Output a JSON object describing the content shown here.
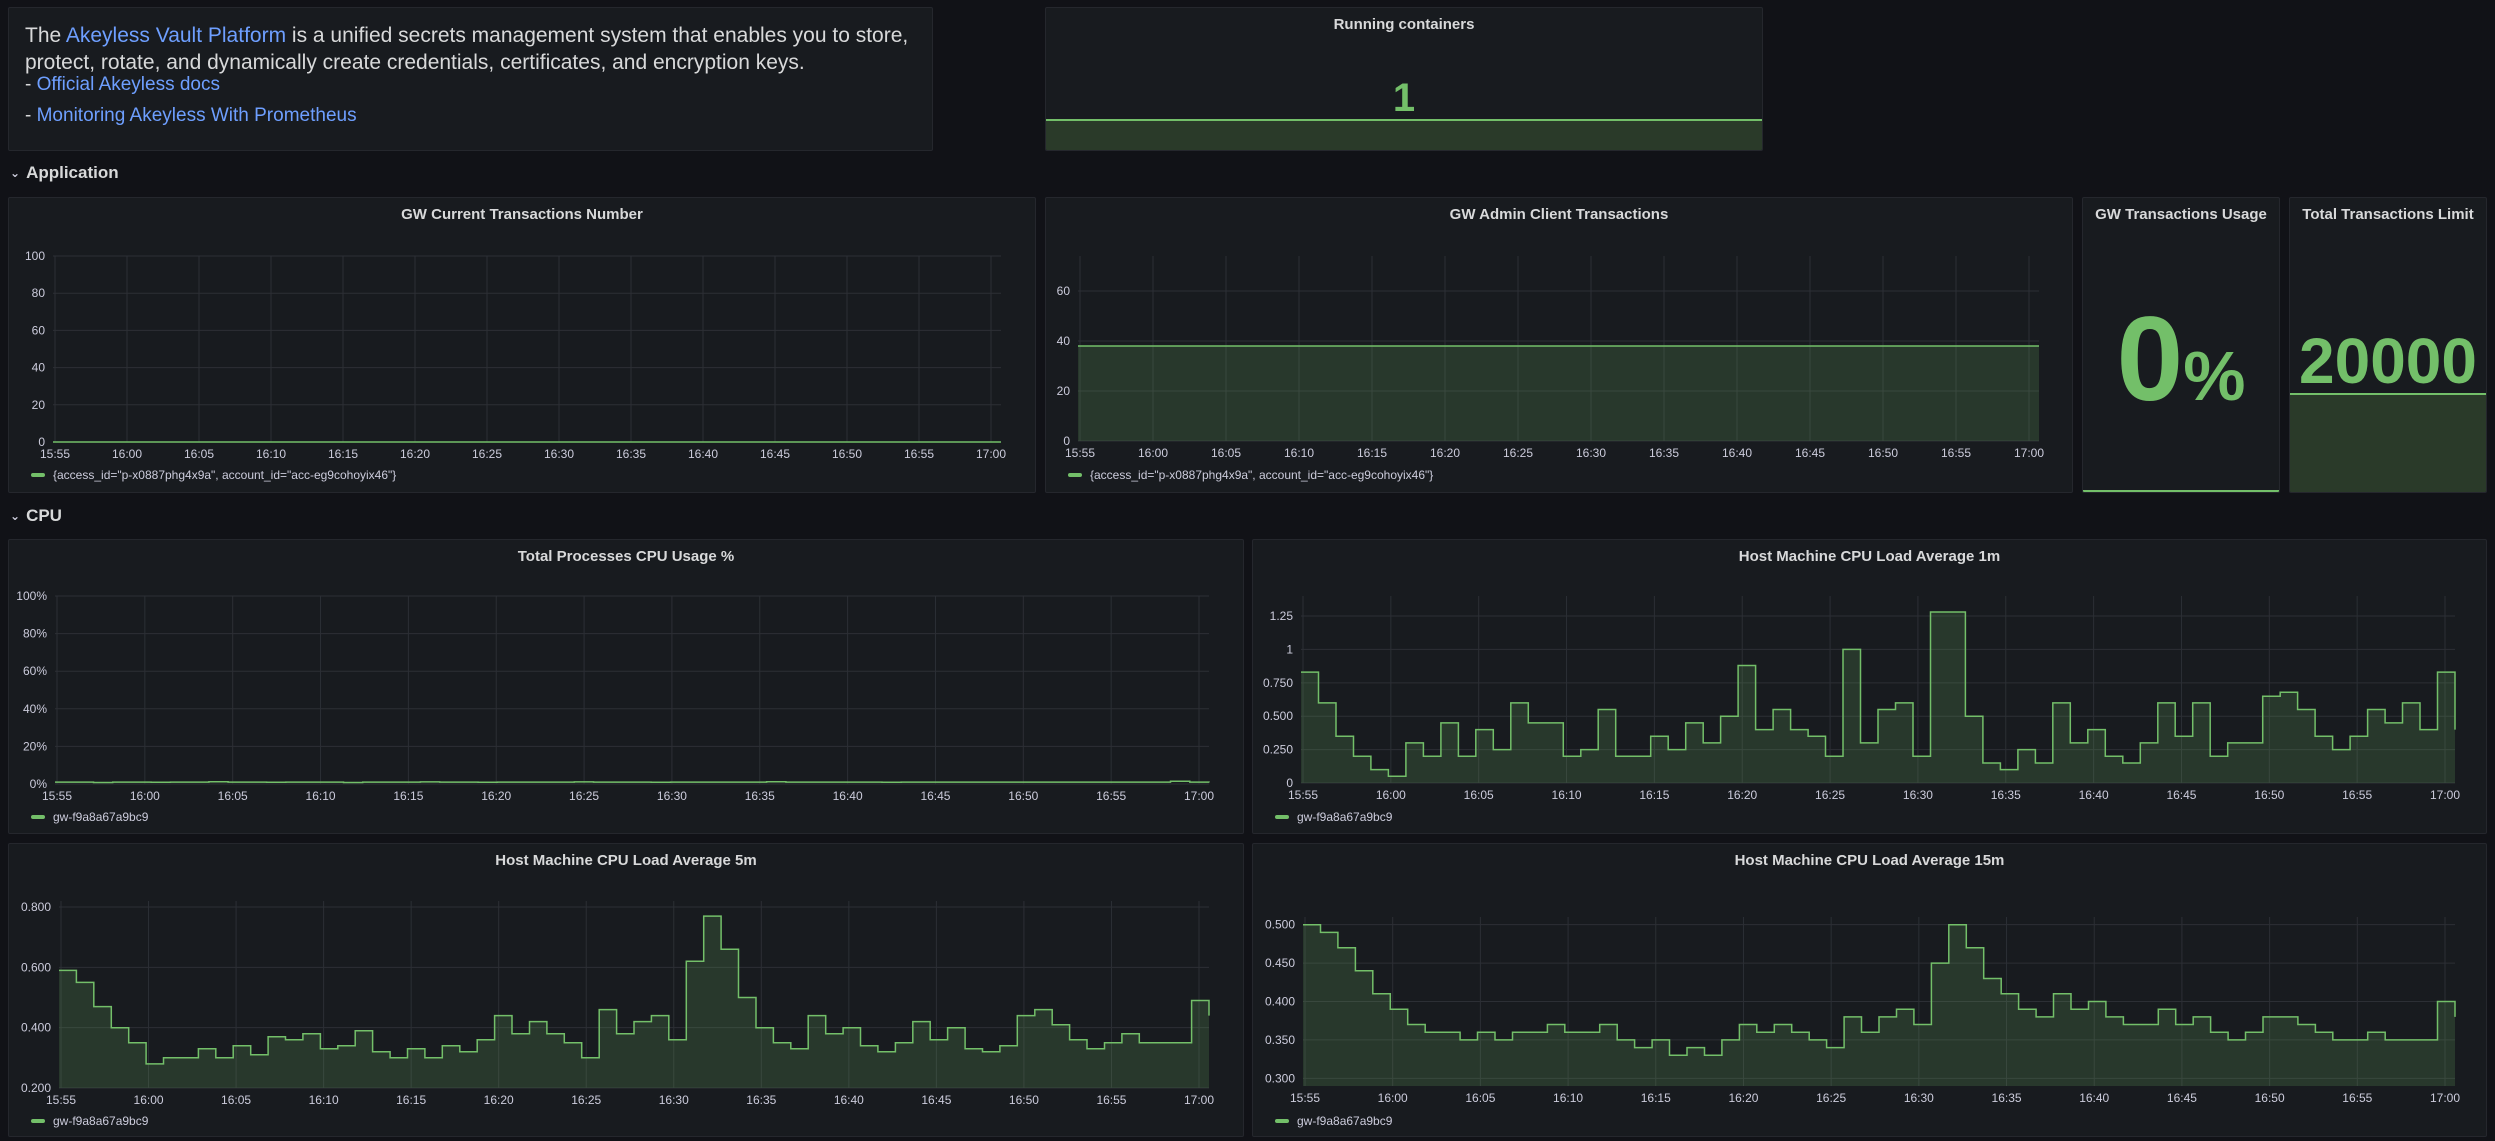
{
  "intro": {
    "text_1": "The ",
    "link_platform": "Akeyless Vault Platform",
    "text_2": " is a unified secrets management system that enables you to store, protect, rotate, and dynamically create credentials, certificates, and encryption keys.",
    "dash_1": "- ",
    "link_docs": "Official Akeyless docs",
    "dash_2": "- ",
    "link_prometheus": "Monitoring Akeyless With Prometheus"
  },
  "running_containers": {
    "title": "Running containers",
    "value": "1"
  },
  "rows": {
    "application": "Application",
    "cpu": "CPU"
  },
  "stats": {
    "usage": {
      "title": "GW Transactions Usage",
      "value": "0",
      "unit": "%"
    },
    "limit": {
      "title": "Total Transactions Limit",
      "value": "20000"
    }
  },
  "colors": {
    "series": "#73bf69",
    "link": "#6e9fff",
    "panel_bg": "#181b1f",
    "page_bg": "#111217"
  },
  "chart_data": [
    {
      "id": "gw_current",
      "type": "line",
      "title": "GW Current Transactions Number",
      "ylim": [
        0,
        100
      ],
      "yticks": [
        "0",
        "20",
        "40",
        "60",
        "80",
        "100"
      ],
      "xticks": [
        "15:55",
        "16:00",
        "16:05",
        "16:10",
        "16:15",
        "16:20",
        "16:25",
        "16:30",
        "16:35",
        "16:40",
        "16:45",
        "16:50",
        "16:55",
        "17:00"
      ],
      "legend": "{access_id=\"p-x0887phg4x9a\", account_id=\"acc-eg9cohoyix46\"}",
      "series": [
        {
          "values": [
            0,
            0,
            0,
            0,
            0,
            0,
            0,
            0,
            0,
            0,
            0,
            0,
            0,
            0,
            0
          ]
        }
      ]
    },
    {
      "id": "gw_admin",
      "type": "area",
      "title": "GW Admin Client Transactions",
      "ylim": [
        0,
        74
      ],
      "yticks": [
        "0",
        "20",
        "40",
        "60"
      ],
      "xticks": [
        "15:55",
        "16:00",
        "16:05",
        "16:10",
        "16:15",
        "16:20",
        "16:25",
        "16:30",
        "16:35",
        "16:40",
        "16:45",
        "16:50",
        "16:55",
        "17:00"
      ],
      "legend": "{access_id=\"p-x0887phg4x9a\", account_id=\"acc-eg9cohoyix46\"}",
      "series": [
        {
          "values": [
            38,
            38,
            38,
            38,
            38,
            38,
            38,
            38,
            38,
            38,
            38,
            38,
            38,
            38,
            38
          ]
        }
      ]
    },
    {
      "id": "cpu_usage",
      "type": "line",
      "title": "Total Processes CPU Usage %",
      "ylim": [
        0,
        100
      ],
      "yticks": [
        "0%",
        "20%",
        "40%",
        "60%",
        "80%",
        "100%"
      ],
      "xticks": [
        "15:55",
        "16:00",
        "16:05",
        "16:10",
        "16:15",
        "16:20",
        "16:25",
        "16:30",
        "16:35",
        "16:40",
        "16:45",
        "16:50",
        "16:55",
        "17:00"
      ],
      "legend": "gw-f9a8a67a9bc9",
      "series": [
        {
          "values": [
            1,
            1,
            0.8,
            1,
            1,
            0.9,
            1,
            1,
            1.2,
            1,
            1,
            0.9,
            1,
            1,
            1,
            0.8,
            1,
            1,
            1,
            1.1,
            1,
            1,
            0.9,
            1,
            1,
            1,
            1,
            1.1,
            1,
            1,
            1,
            0.9,
            1,
            1,
            1,
            1,
            1,
            1.2,
            1,
            1,
            1,
            1,
            1,
            0.9,
            1,
            1,
            1,
            1,
            1,
            1,
            1,
            1,
            1,
            1,
            1,
            1,
            1,
            1,
            1.5,
            1,
            0.8
          ]
        }
      ]
    },
    {
      "id": "load_1m",
      "type": "area",
      "title": "Host Machine CPU Load Average 1m",
      "ylim": [
        0,
        1.4
      ],
      "yticks": [
        "0",
        "0.250",
        "0.500",
        "0.750",
        "1",
        "1.25"
      ],
      "xticks": [
        "15:55",
        "16:00",
        "16:05",
        "16:10",
        "16:15",
        "16:20",
        "16:25",
        "16:30",
        "16:35",
        "16:40",
        "16:45",
        "16:50",
        "16:55",
        "17:00"
      ],
      "legend": "gw-f9a8a67a9bc9",
      "series": [
        {
          "values": [
            0.83,
            0.6,
            0.35,
            0.2,
            0.1,
            0.05,
            0.3,
            0.2,
            0.45,
            0.2,
            0.4,
            0.25,
            0.6,
            0.45,
            0.45,
            0.2,
            0.25,
            0.55,
            0.2,
            0.2,
            0.35,
            0.25,
            0.45,
            0.3,
            0.5,
            0.88,
            0.4,
            0.55,
            0.4,
            0.35,
            0.2,
            1.0,
            0.3,
            0.55,
            0.6,
            0.2,
            1.28,
            1.28,
            0.5,
            0.15,
            0.1,
            0.25,
            0.15,
            0.6,
            0.3,
            0.4,
            0.2,
            0.15,
            0.3,
            0.6,
            0.35,
            0.6,
            0.2,
            0.3,
            0.3,
            0.65,
            0.68,
            0.55,
            0.35,
            0.25,
            0.35,
            0.55,
            0.45,
            0.6,
            0.4,
            0.83,
            0.4
          ]
        }
      ]
    },
    {
      "id": "load_5m",
      "type": "area",
      "title": "Host Machine CPU Load Average 5m",
      "ylim": [
        0.2,
        0.82
      ],
      "yticks": [
        "0.200",
        "0.400",
        "0.600",
        "0.800"
      ],
      "xticks": [
        "15:55",
        "16:00",
        "16:05",
        "16:10",
        "16:15",
        "16:20",
        "16:25",
        "16:30",
        "16:35",
        "16:40",
        "16:45",
        "16:50",
        "16:55",
        "17:00"
      ],
      "legend": "gw-f9a8a67a9bc9",
      "series": [
        {
          "values": [
            0.59,
            0.55,
            0.47,
            0.4,
            0.35,
            0.28,
            0.3,
            0.3,
            0.33,
            0.3,
            0.34,
            0.31,
            0.37,
            0.36,
            0.38,
            0.33,
            0.34,
            0.39,
            0.32,
            0.3,
            0.33,
            0.3,
            0.34,
            0.32,
            0.36,
            0.44,
            0.38,
            0.42,
            0.38,
            0.35,
            0.3,
            0.46,
            0.38,
            0.42,
            0.44,
            0.36,
            0.62,
            0.77,
            0.66,
            0.5,
            0.4,
            0.35,
            0.33,
            0.44,
            0.38,
            0.4,
            0.34,
            0.32,
            0.35,
            0.42,
            0.36,
            0.4,
            0.33,
            0.32,
            0.34,
            0.44,
            0.46,
            0.41,
            0.36,
            0.33,
            0.35,
            0.38,
            0.35,
            0.35,
            0.35,
            0.49,
            0.44
          ]
        }
      ]
    },
    {
      "id": "load_15m",
      "type": "area",
      "title": "Host Machine CPU Load Average 15m",
      "ylim": [
        0.29,
        0.51
      ],
      "yticks": [
        "0.300",
        "0.350",
        "0.400",
        "0.450",
        "0.500"
      ],
      "xticks": [
        "15:55",
        "16:00",
        "16:05",
        "16:10",
        "16:15",
        "16:20",
        "16:25",
        "16:30",
        "16:35",
        "16:40",
        "16:45",
        "16:50",
        "16:55",
        "17:00"
      ],
      "legend": "gw-f9a8a67a9bc9",
      "series": [
        {
          "values": [
            0.5,
            0.49,
            0.47,
            0.44,
            0.41,
            0.39,
            0.37,
            0.36,
            0.36,
            0.35,
            0.36,
            0.35,
            0.36,
            0.36,
            0.37,
            0.36,
            0.36,
            0.37,
            0.35,
            0.34,
            0.35,
            0.33,
            0.34,
            0.33,
            0.35,
            0.37,
            0.36,
            0.37,
            0.36,
            0.35,
            0.34,
            0.38,
            0.36,
            0.38,
            0.39,
            0.37,
            0.45,
            0.5,
            0.47,
            0.43,
            0.41,
            0.39,
            0.38,
            0.41,
            0.39,
            0.4,
            0.38,
            0.37,
            0.37,
            0.39,
            0.37,
            0.38,
            0.36,
            0.35,
            0.36,
            0.38,
            0.38,
            0.37,
            0.36,
            0.35,
            0.35,
            0.36,
            0.35,
            0.35,
            0.35,
            0.4,
            0.38
          ]
        }
      ]
    }
  ]
}
